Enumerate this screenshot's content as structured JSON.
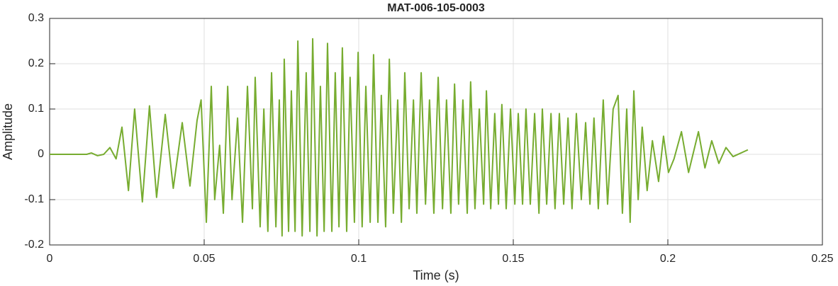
{
  "chart_data": {
    "type": "line",
    "title": "MAT-006-105-0003",
    "xlabel": "Time (s)",
    "ylabel": "Amplitude",
    "color": "#77ac30",
    "grid": true,
    "xlim": [
      0,
      0.25
    ],
    "xticks": [
      0,
      0.05,
      0.1,
      0.15,
      0.2,
      0.25
    ],
    "ylim": [
      -0.2,
      0.3
    ],
    "yticks": [
      -0.2,
      -0.1,
      0,
      0.1,
      0.2,
      0.3
    ],
    "x": [
      0,
      0.012,
      0.0135,
      0.0155,
      0.0175,
      0.0195,
      0.0215,
      0.0234,
      0.0255,
      0.0275,
      0.03,
      0.0323,
      0.0346,
      0.0374,
      0.04,
      0.0429,
      0.0454,
      0.0477,
      0.049,
      0.0507,
      0.0523,
      0.0534,
      0.055,
      0.0562,
      0.0576,
      0.059,
      0.0608,
      0.0624,
      0.064,
      0.0656,
      0.0665,
      0.0681,
      0.0693,
      0.0706,
      0.0718,
      0.0732,
      0.0743,
      0.0752,
      0.0759,
      0.0773,
      0.0782,
      0.0794,
      0.0803,
      0.0817,
      0.083,
      0.0842,
      0.0851,
      0.0865,
      0.0876,
      0.0888,
      0.0899,
      0.0913,
      0.0924,
      0.0936,
      0.0947,
      0.0961,
      0.0972,
      0.0986,
      0.0998,
      0.1011,
      0.1023,
      0.1037,
      0.1048,
      0.1062,
      0.1073,
      0.1087,
      0.1099,
      0.1112,
      0.1126,
      0.1138,
      0.1149,
      0.1163,
      0.1177,
      0.1188,
      0.1202,
      0.1216,
      0.1229,
      0.1243,
      0.1257,
      0.1271,
      0.1284,
      0.1298,
      0.131,
      0.1323,
      0.1337,
      0.1351,
      0.1362,
      0.1376,
      0.139,
      0.1404,
      0.1413,
      0.1427,
      0.144,
      0.1452,
      0.1463,
      0.1477,
      0.1491,
      0.1505,
      0.1516,
      0.153,
      0.1541,
      0.1555,
      0.1569,
      0.1583,
      0.1594,
      0.1608,
      0.1622,
      0.1635,
      0.1649,
      0.1663,
      0.1677,
      0.169,
      0.1704,
      0.172,
      0.1734,
      0.1748,
      0.1761,
      0.1775,
      0.1791,
      0.1805,
      0.1823,
      0.1839,
      0.1853,
      0.1867,
      0.1878,
      0.189,
      0.1904,
      0.1917,
      0.1933,
      0.195,
      0.197,
      0.1986,
      0.2002,
      0.202,
      0.2044,
      0.2067,
      0.2099,
      0.212,
      0.2142,
      0.2165,
      0.2188,
      0.2211,
      0.2259
    ],
    "values": [
      0,
      0,
      0.003,
      -0.003,
      0,
      0.015,
      -0.01,
      0.06,
      -0.08,
      0.1,
      -0.105,
      0.107,
      -0.095,
      0.088,
      -0.075,
      0.07,
      -0.07,
      0.075,
      0.12,
      -0.15,
      0.15,
      -0.1,
      0.02,
      -0.13,
      0.15,
      -0.1,
      0.08,
      -0.15,
      0.15,
      -0.12,
      0.17,
      -0.16,
      0.1,
      -0.17,
      0.18,
      -0.16,
      0.12,
      -0.18,
      0.21,
      -0.17,
      0.14,
      -0.17,
      0.25,
      -0.18,
      0.18,
      -0.17,
      0.255,
      -0.18,
      0.15,
      -0.17,
      0.245,
      -0.17,
      0.18,
      -0.16,
      0.235,
      -0.17,
      0.17,
      -0.15,
      0.225,
      -0.16,
      0.15,
      -0.15,
      0.22,
      -0.15,
      0.13,
      -0.16,
      0.21,
      -0.13,
      0.12,
      -0.15,
      0.18,
      -0.12,
      0.12,
      -0.13,
      0.18,
      -0.11,
      0.12,
      -0.13,
      0.17,
      -0.12,
      0.12,
      -0.13,
      0.155,
      -0.11,
      0.12,
      -0.13,
      0.16,
      -0.12,
      0.1,
      -0.11,
      0.14,
      -0.12,
      0.09,
      -0.11,
      0.11,
      -0.12,
      0.1,
      -0.11,
      0.09,
      -0.11,
      0.1,
      -0.11,
      0.09,
      -0.13,
      0.1,
      -0.11,
      0.09,
      -0.12,
      0.09,
      -0.11,
      0.08,
      -0.12,
      0.09,
      -0.1,
      0.07,
      -0.11,
      0.08,
      -0.12,
      0.12,
      -0.11,
      0.1,
      0.13,
      -0.13,
      0.1,
      -0.15,
      0.14,
      -0.1,
      0.06,
      -0.08,
      0.03,
      -0.06,
      0.04,
      -0.04,
      -0.01,
      0.05,
      -0.04,
      0.05,
      -0.03,
      0.03,
      -0.02,
      0.015,
      -0.005,
      0.01
    ]
  }
}
